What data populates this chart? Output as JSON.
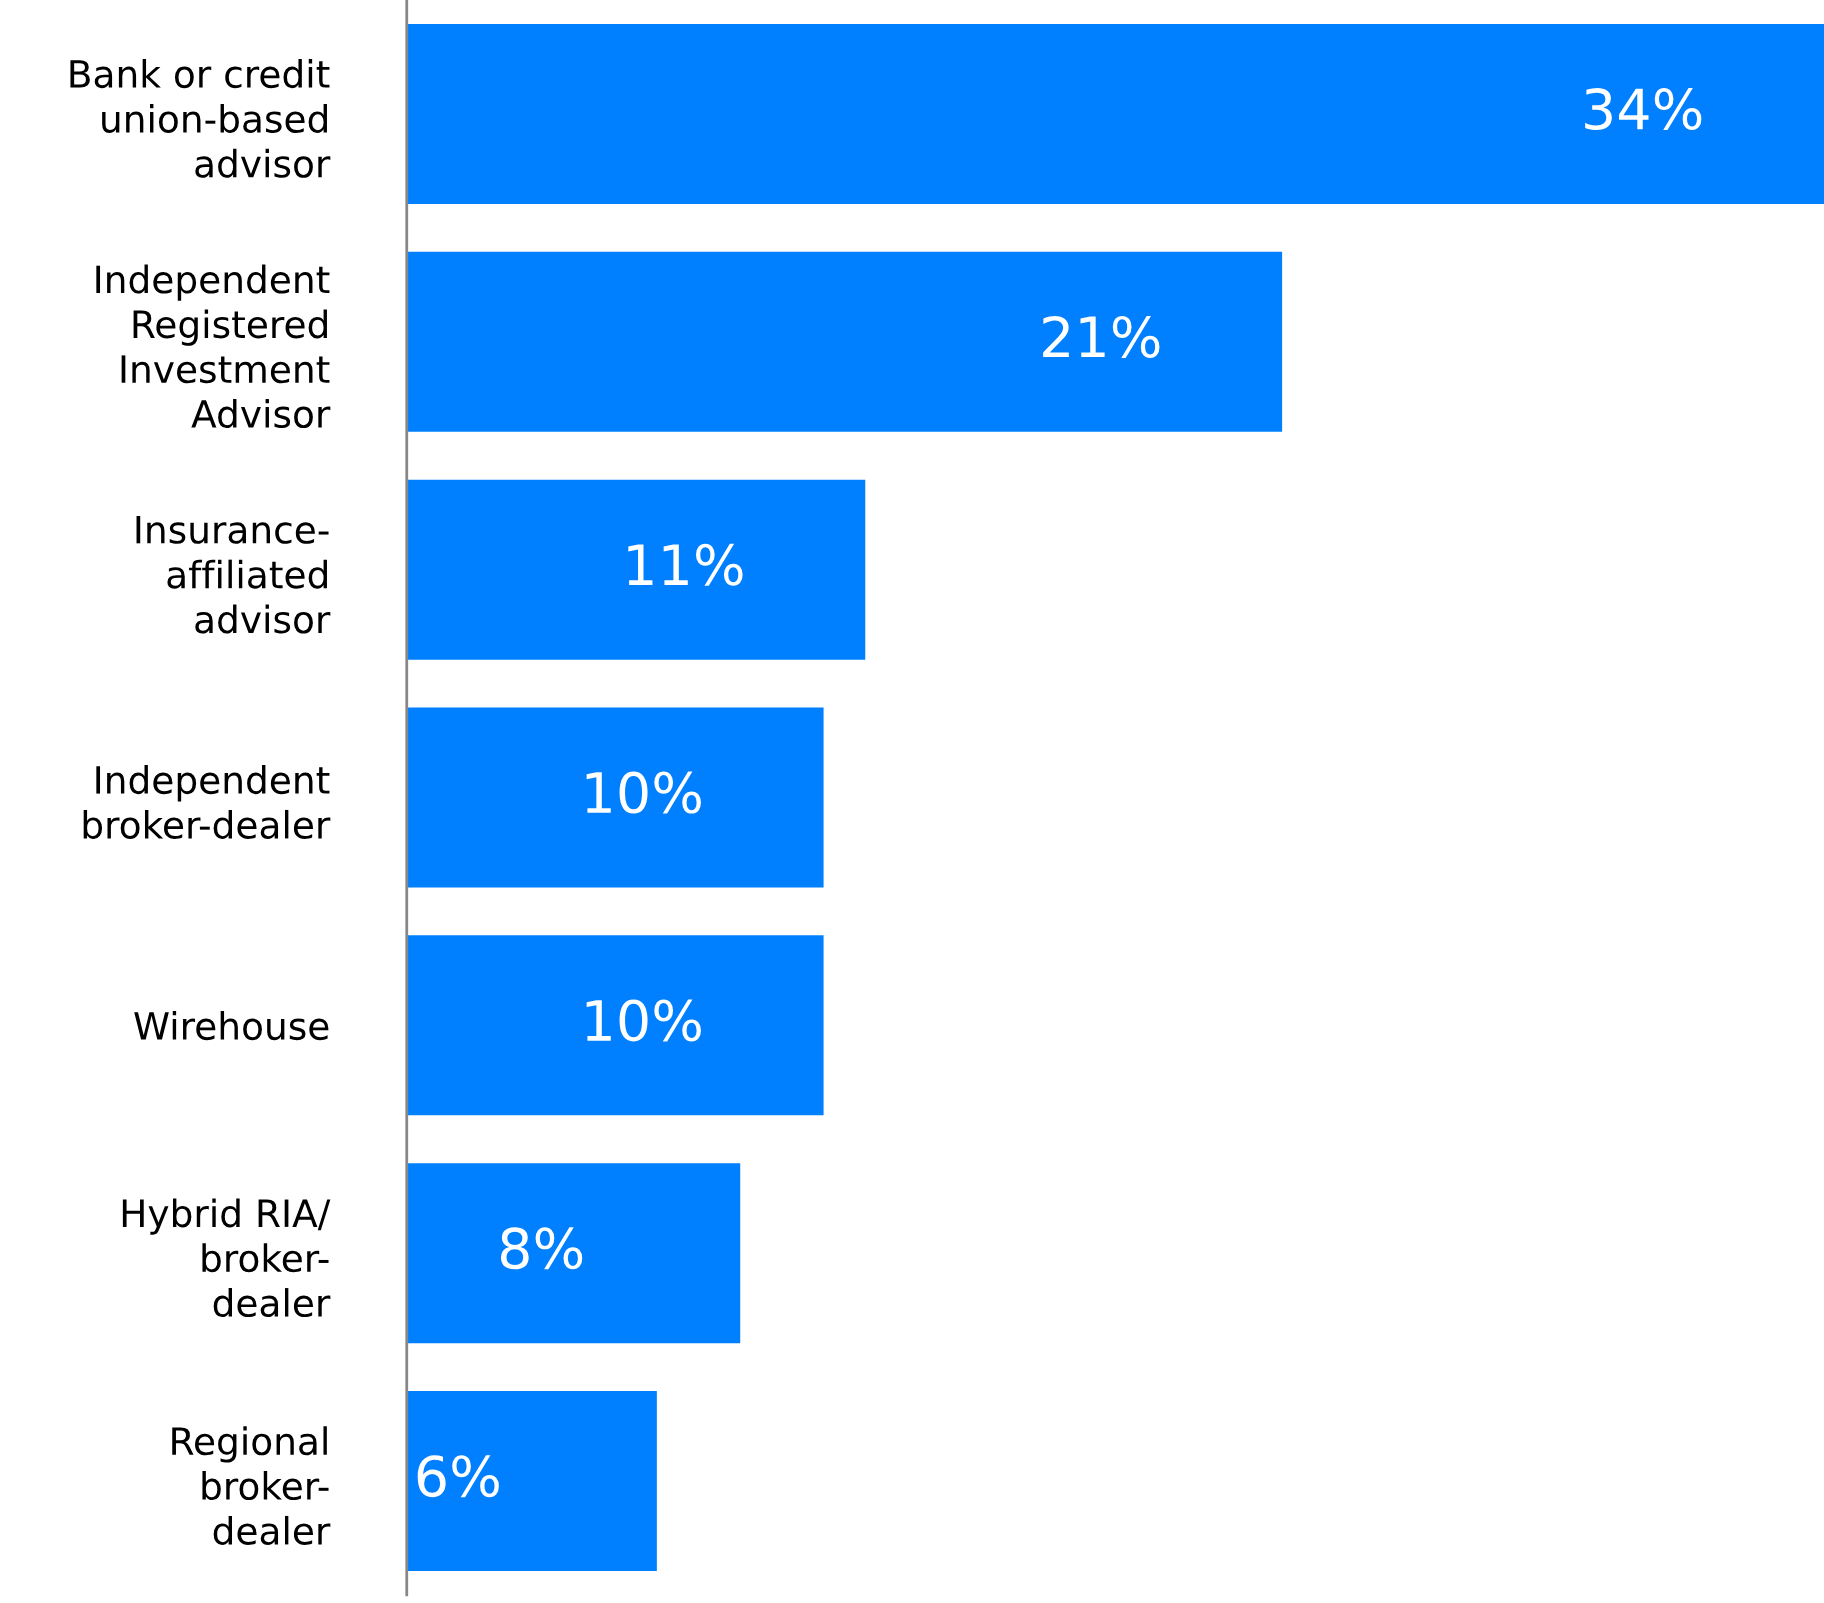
{
  "chart_data": {
    "type": "bar",
    "orientation": "horizontal",
    "categories": [
      "Bank or credit\nunion-based\nadvisor",
      "Independent\nRegistered\nInvestment\nAdvisor",
      "Insurance-\naffiliated\nadvisor",
      "Independent\nbroker-dealer",
      "Wirehouse",
      "Hybrid RIA/\nbroker-\ndealer",
      "Regional\nbroker-\ndealer"
    ],
    "values": [
      34,
      21,
      11,
      10,
      10,
      8,
      6
    ],
    "value_labels": [
      "34%",
      "21%",
      "11%",
      "10%",
      "10%",
      "8%",
      "6%"
    ],
    "color": "#0080ff",
    "grid": false,
    "legend": false
  }
}
